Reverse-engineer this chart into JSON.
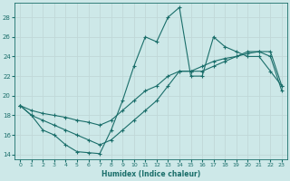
{
  "xlabel": "Humidex (Indice chaleur)",
  "xlim": [
    -0.5,
    23.5
  ],
  "ylim": [
    13.5,
    29.5
  ],
  "yticks": [
    14,
    16,
    18,
    20,
    22,
    24,
    26,
    28
  ],
  "xticks": [
    0,
    1,
    2,
    3,
    4,
    5,
    6,
    7,
    8,
    9,
    10,
    11,
    12,
    13,
    14,
    15,
    16,
    17,
    18,
    19,
    20,
    21,
    22,
    23
  ],
  "bg_color": "#cde8e8",
  "grid_color": "#c0d8d8",
  "line_color": "#1a6e6a",
  "series": {
    "line1_x": [
      0,
      1,
      2,
      3,
      4,
      5,
      6,
      7,
      8,
      9,
      10,
      11,
      12,
      13,
      14,
      15,
      16,
      17,
      18,
      19,
      20,
      21,
      22,
      23
    ],
    "line1_y": [
      19.0,
      18.0,
      16.5,
      16.0,
      15.0,
      14.3,
      14.2,
      14.1,
      16.5,
      19.5,
      23.0,
      26.0,
      25.5,
      28.0,
      29.0,
      22.0,
      22.0,
      26.0,
      25.0,
      24.5,
      24.0,
      24.0,
      22.5,
      21.0
    ],
    "line2_x": [
      0,
      1,
      2,
      3,
      4,
      5,
      6,
      7,
      8,
      9,
      10,
      11,
      12,
      13,
      14,
      15,
      16,
      17,
      18,
      19,
      20,
      21,
      22,
      23
    ],
    "line2_y": [
      19.0,
      18.5,
      18.2,
      18.0,
      17.8,
      17.5,
      17.3,
      17.0,
      17.5,
      18.5,
      19.5,
      20.5,
      21.0,
      22.0,
      22.5,
      22.5,
      23.0,
      23.5,
      23.8,
      24.0,
      24.3,
      24.5,
      24.5,
      21.0
    ],
    "line3_x": [
      0,
      1,
      2,
      3,
      4,
      5,
      6,
      7,
      8,
      9,
      10,
      11,
      12,
      13,
      14,
      15,
      16,
      17,
      18,
      19,
      20,
      21,
      22,
      23
    ],
    "line3_y": [
      19.0,
      18.0,
      17.5,
      17.0,
      16.5,
      16.0,
      15.5,
      15.0,
      15.5,
      16.5,
      17.5,
      18.5,
      19.5,
      21.0,
      22.5,
      22.5,
      22.5,
      23.0,
      23.5,
      24.0,
      24.5,
      24.5,
      24.0,
      20.5
    ]
  }
}
